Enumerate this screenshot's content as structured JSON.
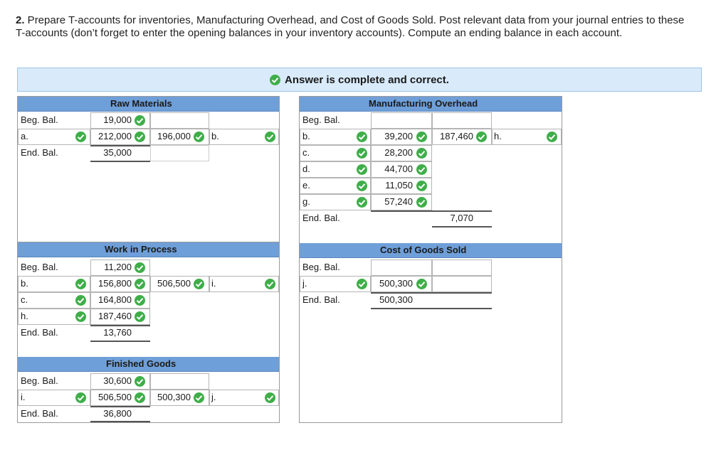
{
  "instructions": {
    "number": "2.",
    "text": " Prepare T-accounts for inventories, Manufacturing Overhead, and Cost of Goods Sold. Post relevant data from your journal entries to these T-accounts (don’t forget to enter the opening balances in your inventory accounts). Compute an ending balance in each account."
  },
  "banner": {
    "text": "Answer is complete and correct."
  },
  "raw_materials": {
    "title": "Raw Materials",
    "beg_label": "Beg. Bal.",
    "beg_value": "19,000",
    "row_a_label": "a.",
    "row_a_debit": "212,000",
    "row_a_credit": "196,000",
    "row_a_credit_label": "b.",
    "end_label": "End. Bal.",
    "end_value": "35,000"
  },
  "manufacturing_overhead": {
    "title": "Manufacturing Overhead",
    "beg_label": "Beg. Bal.",
    "rows": [
      {
        "label": "b.",
        "debit": "39,200"
      },
      {
        "label": "c.",
        "debit": "28,200"
      },
      {
        "label": "d.",
        "debit": "44,700"
      },
      {
        "label": "e.",
        "debit": "11,050"
      },
      {
        "label": "g.",
        "debit": "57,240"
      }
    ],
    "credit_value": "187,460",
    "credit_label": "h.",
    "end_label": "End. Bal.",
    "end_credit": "7,070"
  },
  "work_in_process": {
    "title": "Work in Process",
    "beg_label": "Beg. Bal.",
    "beg_value": "11,200",
    "rows": [
      {
        "label": "b.",
        "debit": "156,800"
      },
      {
        "label": "c.",
        "debit": "164,800"
      },
      {
        "label": "h.",
        "debit": "187,460"
      }
    ],
    "credit_value": "506,500",
    "credit_label": "i.",
    "end_label": "End. Bal.",
    "end_value": "13,760"
  },
  "cost_of_goods_sold": {
    "title": "Cost of Goods Sold",
    "beg_label": "Beg. Bal.",
    "row_label": "j.",
    "row_debit": "500,300",
    "end_label": "End. Bal.",
    "end_value": "500,300"
  },
  "finished_goods": {
    "title": "Finished Goods",
    "beg_label": "Beg. Bal.",
    "beg_value": "30,600",
    "row_label": "i.",
    "row_debit": "506,500",
    "row_credit": "500,300",
    "row_credit_label": "j.",
    "end_label": "End. Bal.",
    "end_value": "36,800"
  },
  "icons": {
    "check": "check-circle-icon",
    "check_color": "#3fae49",
    "header_color": "#6f9fd8"
  }
}
